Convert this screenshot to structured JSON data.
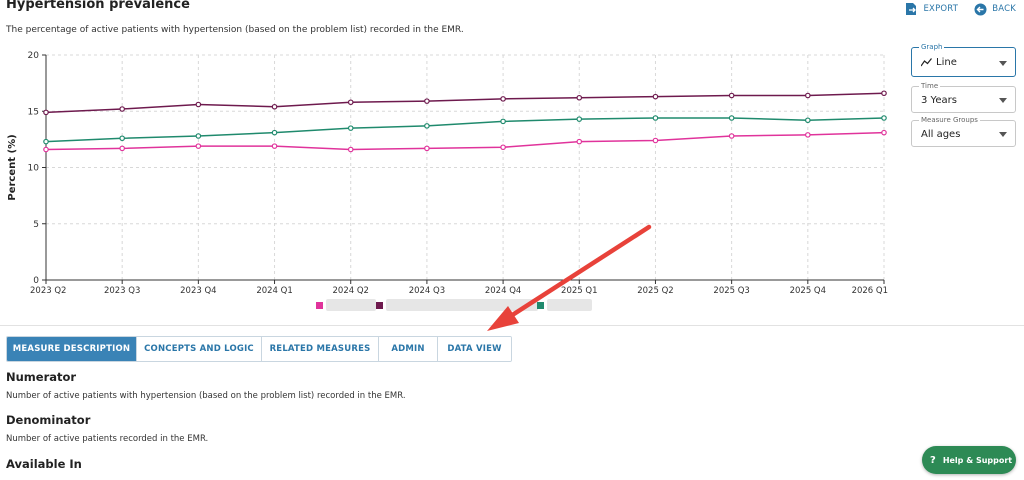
{
  "page": {
    "title": "Hypertension prevalence",
    "subtitle": "The percentage of active patients with hypertension (based on the problem list) recorded in the EMR."
  },
  "actions": {
    "export_label": "EXPORT",
    "back_label": "BACK"
  },
  "controls": {
    "graph": {
      "label": "Graph",
      "value": "Line"
    },
    "time": {
      "label": "Time",
      "value": "3 Years"
    },
    "measure_groups": {
      "label": "Measure Groups",
      "value": "All ages"
    }
  },
  "tabs": [
    {
      "label": "MEASURE DESCRIPTION",
      "selected": true
    },
    {
      "label": "CONCEPTS AND LOGIC",
      "selected": false
    },
    {
      "label": "RELATED MEASURES",
      "selected": false
    },
    {
      "label": "ADMIN",
      "selected": false
    },
    {
      "label": "DATA VIEW",
      "selected": false
    }
  ],
  "description": {
    "numerator_heading": "Numerator",
    "numerator_text": "Number of active patients with hypertension (based on the problem list) recorded in the EMR.",
    "denominator_heading": "Denominator",
    "denominator_text": "Number of active patients recorded in the EMR.",
    "available_heading": "Available In"
  },
  "help": {
    "label": "Help & Support"
  },
  "colors": {
    "accent": "#2a76a8",
    "tab_selected": "#3a83b6",
    "help_green": "#2d8a55",
    "arrow": "#e8423a"
  },
  "chart_data": {
    "type": "line",
    "ylabel": "Percent (%)",
    "xlabel": "",
    "ylim": [
      0,
      20
    ],
    "yticks": [
      0,
      5,
      10,
      15,
      20
    ],
    "grid": true,
    "legend_position": "bottom",
    "categories": [
      "2023 Q2",
      "2023 Q3",
      "2023 Q4",
      "2024 Q1",
      "2024 Q2",
      "2024 Q3",
      "2024 Q4",
      "2025 Q1",
      "2025 Q2",
      "2025 Q3",
      "2025 Q4",
      "2026 Q1"
    ],
    "series": [
      {
        "color": "#6e1a4e",
        "values": [
          14.9,
          15.2,
          15.6,
          15.4,
          15.8,
          15.9,
          16.1,
          16.2,
          16.3,
          16.4,
          16.4,
          16.6
        ]
      },
      {
        "color": "#1f8a6d",
        "values": [
          12.3,
          12.6,
          12.8,
          13.1,
          13.5,
          13.7,
          14.1,
          14.3,
          14.4,
          14.4,
          14.2,
          14.4
        ]
      },
      {
        "color": "#e0339b",
        "values": [
          11.6,
          11.7,
          11.9,
          11.9,
          11.6,
          11.7,
          11.8,
          12.3,
          12.4,
          12.8,
          12.9,
          13.1
        ]
      }
    ]
  }
}
